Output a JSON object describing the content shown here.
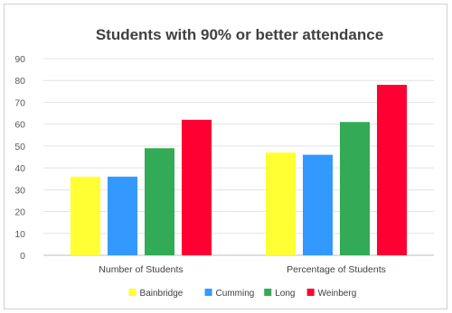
{
  "chart_data": {
    "type": "bar",
    "title": "Students with 90% or better attendance",
    "xlabel": "",
    "ylabel": "",
    "categories": [
      "Number of Students",
      "Percentage of Students"
    ],
    "series": [
      {
        "name": "Bainbridge",
        "values": [
          36,
          47
        ],
        "color": "#ffff33"
      },
      {
        "name": "Cumming",
        "values": [
          36,
          46
        ],
        "color": "#3399ff"
      },
      {
        "name": "Long",
        "values": [
          49,
          61
        ],
        "color": "#33aa55"
      },
      {
        "name": "Weinberg",
        "values": [
          62,
          78
        ],
        "color": "#ff0033"
      }
    ],
    "ylim": [
      0,
      90
    ],
    "yticks": [
      0,
      10,
      20,
      30,
      40,
      50,
      60,
      70,
      80,
      90
    ],
    "grid": true,
    "legend_position": "bottom"
  }
}
